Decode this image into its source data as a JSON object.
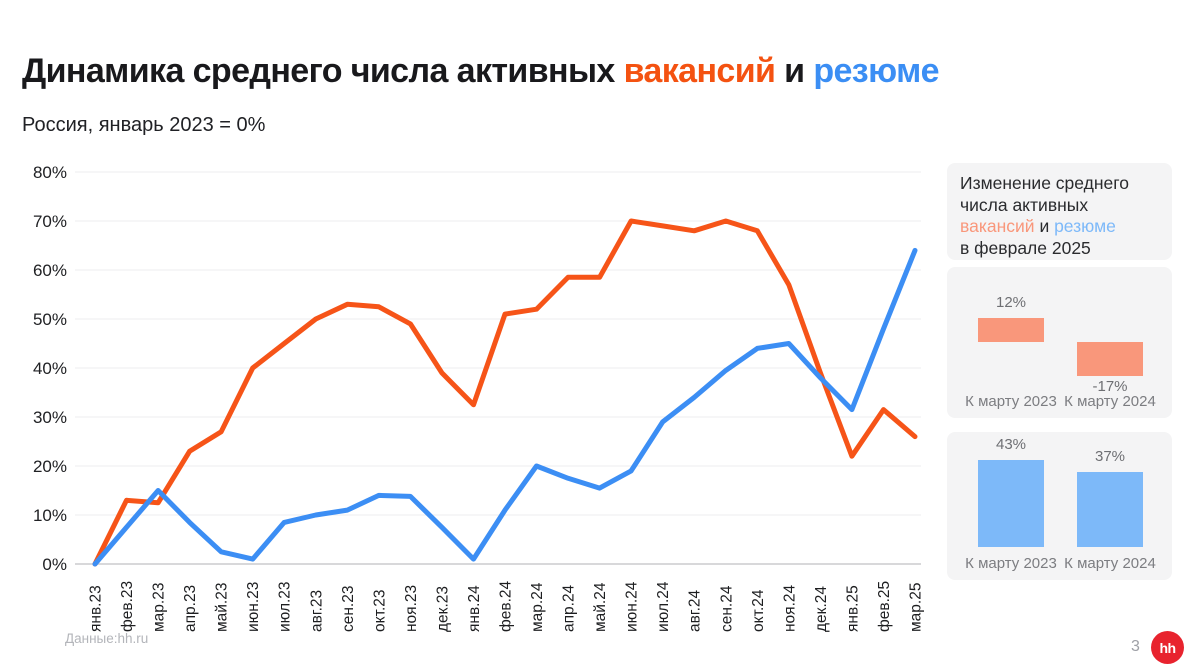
{
  "title": {
    "part1": "Динамика среднего числа активных ",
    "vacancies_word": "вакансий",
    "connector": " и ",
    "resumes_word": "резюме"
  },
  "subtitle": "Россия, январь 2023 = 0%",
  "colors": {
    "vacancies_line": "#F65418",
    "resumes_line": "#3C8EF4",
    "title_orange": "#F45211",
    "title_blue": "#3B8EF4",
    "panel_orange": "#F9977B",
    "panel_blue": "#7DB9F9",
    "card_background": "#F4F4F5",
    "grid": "#EDEDEF",
    "zero_line": "#D8D8DA",
    "logo_red": "#E8232E"
  },
  "chart_data": [
    {
      "type": "line",
      "title": "Динамика среднего числа активных вакансий и резюме",
      "x": [
        "янв.23",
        "фев.23",
        "мар.23",
        "апр.23",
        "май.23",
        "июн.23",
        "июл.23",
        "авг.23",
        "сен.23",
        "окт.23",
        "ноя.23",
        "дек.23",
        "янв.24",
        "фев.24",
        "мар.24",
        "апр.24",
        "май.24",
        "июн.24",
        "июл.24",
        "авг.24",
        "сен.24",
        "окт.24",
        "ноя.24",
        "дек.24",
        "янв.25",
        "фев.25",
        "мар.25"
      ],
      "series": [
        {
          "name": "вакансии",
          "color": "#F65418",
          "values": [
            0,
            13,
            12.5,
            23,
            27,
            40,
            45,
            50,
            53,
            52.5,
            49,
            39,
            32.5,
            51,
            52,
            58.5,
            58.5,
            70,
            69,
            68,
            70,
            68,
            57,
            39,
            22,
            31.5,
            26
          ]
        },
        {
          "name": "резюме",
          "color": "#3C8EF4",
          "values": [
            0,
            7.5,
            15,
            8.5,
            2.5,
            1,
            8.5,
            10,
            11,
            14,
            13.8,
            7.5,
            1,
            11,
            20,
            17.5,
            15.5,
            19,
            29,
            34,
            39.5,
            44,
            45,
            38,
            31.5,
            48,
            64
          ]
        }
      ],
      "ylim": [
        0,
        80
      ],
      "yticks": [
        "0%",
        "10%",
        "20%",
        "30%",
        "40%",
        "50%",
        "60%",
        "70%",
        "80%"
      ],
      "grid": true,
      "legend": "none"
    },
    {
      "type": "bar",
      "series_name": "вакансии",
      "categories": [
        "К марту 2023",
        "К марту 2024"
      ],
      "values": [
        12,
        -17
      ],
      "labels": [
        "12%",
        "-17%"
      ],
      "color": "#F9977B"
    },
    {
      "type": "bar",
      "series_name": "резюме",
      "categories": [
        "К марту 2023",
        "К марту 2024"
      ],
      "values": [
        43,
        37
      ],
      "labels": [
        "43%",
        "37%"
      ],
      "color": "#7DB9F9"
    }
  ],
  "side_panel": {
    "header": {
      "line1": "Изменение среднего",
      "line2": "числа активных",
      "vacancies_word": "вакансий",
      "connector": " и ",
      "resumes_word": "резюме",
      "line4": "в феврале 2025"
    }
  },
  "footer": {
    "source": "Данные:hh.ru",
    "page": "3",
    "logo": "hh"
  }
}
